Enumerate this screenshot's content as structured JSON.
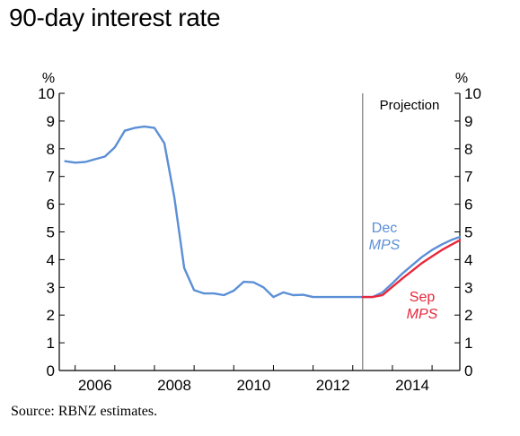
{
  "chart_data": {
    "type": "line",
    "title": "90-day interest rate",
    "ylabel_left": "%",
    "ylabel_right": "%",
    "ylim": [
      0,
      10
    ],
    "yticks": [
      0,
      1,
      2,
      3,
      4,
      5,
      6,
      7,
      8,
      9,
      10
    ],
    "xlim": [
      2005.6,
      2015.7
    ],
    "xticks": [
      2006,
      2008,
      2010,
      2012,
      2014
    ],
    "projection_start": 2013.25,
    "projection_label": "Projection",
    "series": [
      {
        "name": "Dec MPS",
        "name_line1": "Dec",
        "name_line2": "MPS",
        "color": "#5b8fd6",
        "points": [
          [
            2005.75,
            7.55
          ],
          [
            2006.0,
            7.5
          ],
          [
            2006.25,
            7.52
          ],
          [
            2006.5,
            7.62
          ],
          [
            2006.75,
            7.72
          ],
          [
            2007.0,
            8.05
          ],
          [
            2007.25,
            8.65
          ],
          [
            2007.5,
            8.75
          ],
          [
            2007.75,
            8.8
          ],
          [
            2008.0,
            8.75
          ],
          [
            2008.25,
            8.2
          ],
          [
            2008.5,
            6.25
          ],
          [
            2008.75,
            3.7
          ],
          [
            2009.0,
            2.9
          ],
          [
            2009.25,
            2.78
          ],
          [
            2009.5,
            2.78
          ],
          [
            2009.75,
            2.72
          ],
          [
            2010.0,
            2.88
          ],
          [
            2010.25,
            3.2
          ],
          [
            2010.5,
            3.18
          ],
          [
            2010.75,
            3.0
          ],
          [
            2011.0,
            2.65
          ],
          [
            2011.25,
            2.82
          ],
          [
            2011.5,
            2.72
          ],
          [
            2011.75,
            2.73
          ],
          [
            2012.0,
            2.65
          ],
          [
            2012.25,
            2.65
          ],
          [
            2012.5,
            2.65
          ],
          [
            2012.75,
            2.65
          ],
          [
            2013.0,
            2.65
          ],
          [
            2013.25,
            2.65
          ],
          [
            2013.5,
            2.65
          ],
          [
            2013.75,
            2.82
          ],
          [
            2014.0,
            3.15
          ],
          [
            2014.25,
            3.5
          ],
          [
            2014.5,
            3.8
          ],
          [
            2014.75,
            4.1
          ],
          [
            2015.0,
            4.35
          ],
          [
            2015.25,
            4.55
          ],
          [
            2015.5,
            4.72
          ],
          [
            2015.7,
            4.82
          ]
        ]
      },
      {
        "name": "Sep MPS",
        "name_line1": "Sep",
        "name_line2": "MPS",
        "color": "#e8283c",
        "points": [
          [
            2013.25,
            2.65
          ],
          [
            2013.5,
            2.65
          ],
          [
            2013.75,
            2.72
          ],
          [
            2014.0,
            3.02
          ],
          [
            2014.25,
            3.32
          ],
          [
            2014.5,
            3.6
          ],
          [
            2014.75,
            3.88
          ],
          [
            2015.0,
            4.12
          ],
          [
            2015.25,
            4.35
          ],
          [
            2015.5,
            4.55
          ],
          [
            2015.7,
            4.7
          ]
        ]
      }
    ]
  },
  "source": "Source: RBNZ estimates."
}
